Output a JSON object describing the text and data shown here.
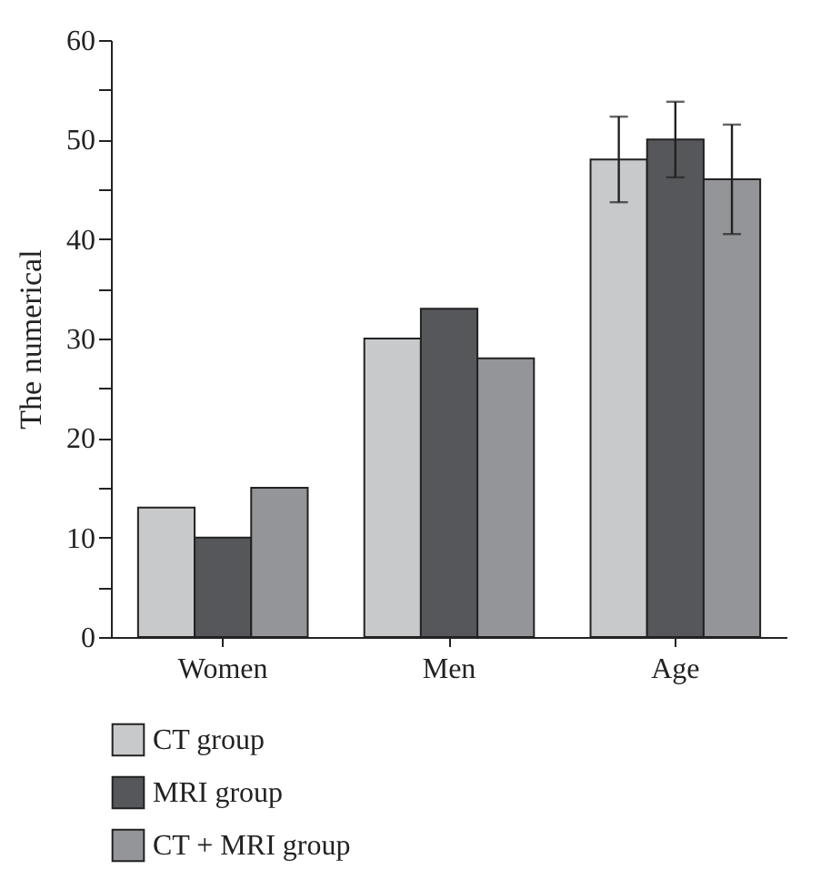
{
  "chart_data": {
    "type": "bar",
    "ylabel": "The numerical",
    "categories": [
      "Women",
      "Men",
      "Age"
    ],
    "series": [
      {
        "name": "CT group",
        "color": "#c8c9cb",
        "values": [
          13,
          30,
          48
        ],
        "errors": [
          null,
          null,
          4.3
        ]
      },
      {
        "name": "MRI group",
        "color": "#55575a",
        "values": [
          10,
          33,
          50
        ],
        "errors": [
          null,
          null,
          3.8
        ]
      },
      {
        "name": "CT + MRI group",
        "color": "#939598",
        "values": [
          15,
          28,
          46
        ],
        "errors": [
          null,
          null,
          5.5
        ]
      }
    ],
    "ylim": [
      0,
      60
    ],
    "yticks": [
      0,
      {
        "value": 5,
        "label": null
      },
      10,
      {
        "value": 15,
        "label": null
      },
      20,
      {
        "value": 25,
        "label": null
      },
      30,
      {
        "value": 35,
        "label": null
      },
      40,
      {
        "value": 45,
        "label": null
      },
      50,
      {
        "value": 55,
        "label": null
      },
      60
    ],
    "grid": false,
    "legend": "bottom"
  }
}
